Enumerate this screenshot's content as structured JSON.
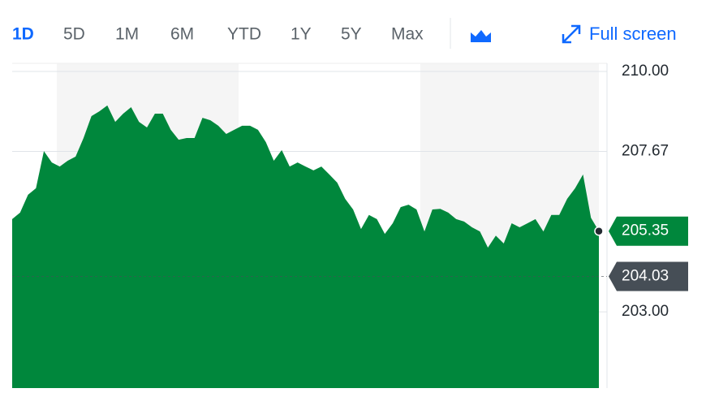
{
  "toolbar": {
    "ranges": [
      "1D",
      "5D",
      "1M",
      "6M",
      "YTD",
      "1Y",
      "5Y",
      "Max"
    ],
    "active_range": 0,
    "fullscreen": "Full screen"
  },
  "chart_data": {
    "type": "area",
    "color": "#00873c",
    "values": [
      205.7,
      205.89,
      206.41,
      206.6,
      207.68,
      207.35,
      207.23,
      207.4,
      207.52,
      208.06,
      208.7,
      208.84,
      209.01,
      208.53,
      208.77,
      208.96,
      208.53,
      208.37,
      208.77,
      208.77,
      208.3,
      208.01,
      208.06,
      208.06,
      208.65,
      208.58,
      208.42,
      208.18,
      208.3,
      208.42,
      208.42,
      208.3,
      207.94,
      207.4,
      207.71,
      207.23,
      207.35,
      207.23,
      207.12,
      207.23,
      207.0,
      206.76,
      206.29,
      205.98,
      205.41,
      205.82,
      205.7,
      205.27,
      205.58,
      206.05,
      206.12,
      205.98,
      205.34,
      205.98,
      206.0,
      205.89,
      205.7,
      205.63,
      205.46,
      205.34,
      204.87,
      205.22,
      204.99,
      205.58,
      205.46,
      205.58,
      205.7,
      205.34,
      205.82,
      205.82,
      206.29,
      206.6,
      207.0,
      205.74,
      205.35
    ],
    "ylim": [
      200.78,
      210.0
    ],
    "yticks": [
      {
        "value": 210.0,
        "label": "210.00"
      },
      {
        "value": 207.67,
        "label": "207.67"
      },
      {
        "value": 203.0,
        "label": "203.00"
      }
    ],
    "grid": true,
    "current_price": {
      "value": 205.35,
      "label": "205.35"
    },
    "previous_close": {
      "value": 204.03,
      "label": "204.03"
    }
  }
}
